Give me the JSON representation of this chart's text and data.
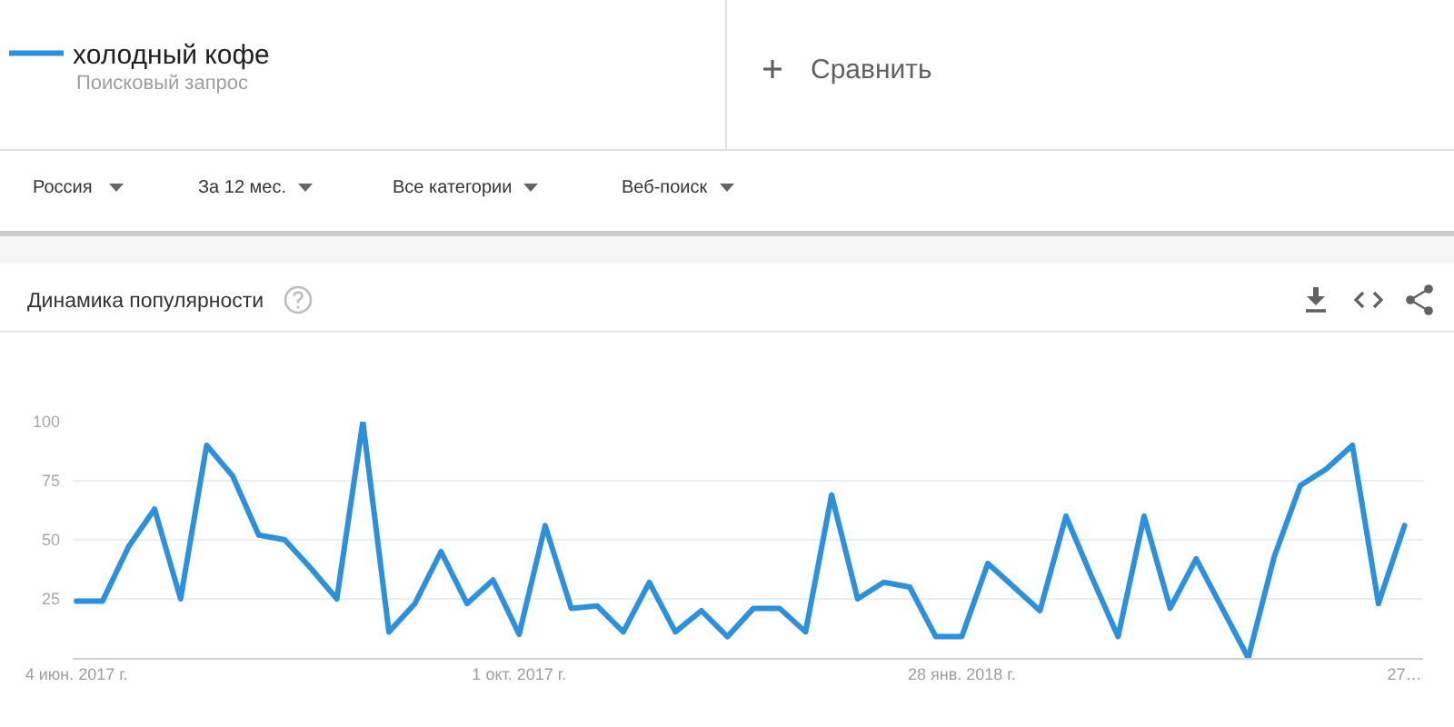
{
  "chart_data": {
    "type": "line",
    "title": "Динамика популярности",
    "x": [
      "2017-06-04",
      "2017-06-11",
      "2017-06-18",
      "2017-06-25",
      "2017-07-02",
      "2017-07-09",
      "2017-07-16",
      "2017-07-23",
      "2017-07-30",
      "2017-08-06",
      "2017-08-13",
      "2017-08-20",
      "2017-08-27",
      "2017-09-03",
      "2017-09-10",
      "2017-09-17",
      "2017-09-24",
      "2017-10-01",
      "2017-10-08",
      "2017-10-15",
      "2017-10-22",
      "2017-10-29",
      "2017-11-05",
      "2017-11-12",
      "2017-11-19",
      "2017-11-26",
      "2017-12-03",
      "2017-12-10",
      "2017-12-17",
      "2017-12-24",
      "2017-12-31",
      "2018-01-07",
      "2018-01-14",
      "2018-01-21",
      "2018-01-28",
      "2018-02-04",
      "2018-02-11",
      "2018-02-18",
      "2018-02-25",
      "2018-03-04",
      "2018-03-11",
      "2018-03-18",
      "2018-03-25",
      "2018-04-01",
      "2018-04-08",
      "2018-04-15",
      "2018-04-22",
      "2018-04-29",
      "2018-05-06",
      "2018-05-13",
      "2018-05-20",
      "2018-05-27"
    ],
    "series": [
      {
        "name": "холодный кофе",
        "color": "#2b90de",
        "values": [
          24,
          24,
          47,
          63,
          25,
          90,
          77,
          52,
          50,
          38,
          25,
          100,
          11,
          23,
          45,
          23,
          33,
          10,
          56,
          21,
          22,
          11,
          32,
          11,
          20,
          9,
          21,
          21,
          11,
          69,
          25,
          32,
          30,
          9,
          9,
          40,
          30,
          20,
          60,
          34,
          9,
          60,
          21,
          42,
          21,
          0,
          43,
          73,
          80,
          90,
          23,
          56
        ]
      }
    ],
    "xlim": [
      "2017-06-03",
      "2018-06-01"
    ],
    "xticks": [
      {
        "value": "2017-06-04",
        "label": "4 июн. 2017 г."
      },
      {
        "value": "2017-10-01",
        "label": "1 окт. 2017 г."
      },
      {
        "value": "2018-01-28",
        "label": "28 янв. 2018 г."
      },
      {
        "value": "2018-05-27",
        "label": "27…"
      }
    ],
    "ylim": [
      0,
      100
    ],
    "yticks": [
      25,
      50,
      75,
      100
    ],
    "grid": "y",
    "legend": "top left",
    "line_style": "solid",
    "annotations": [
      "Поисковый запрос",
      "Сравнить",
      "Россия",
      "За 12 мес.",
      "Все категории",
      "Веб-поиск"
    ]
  }
}
